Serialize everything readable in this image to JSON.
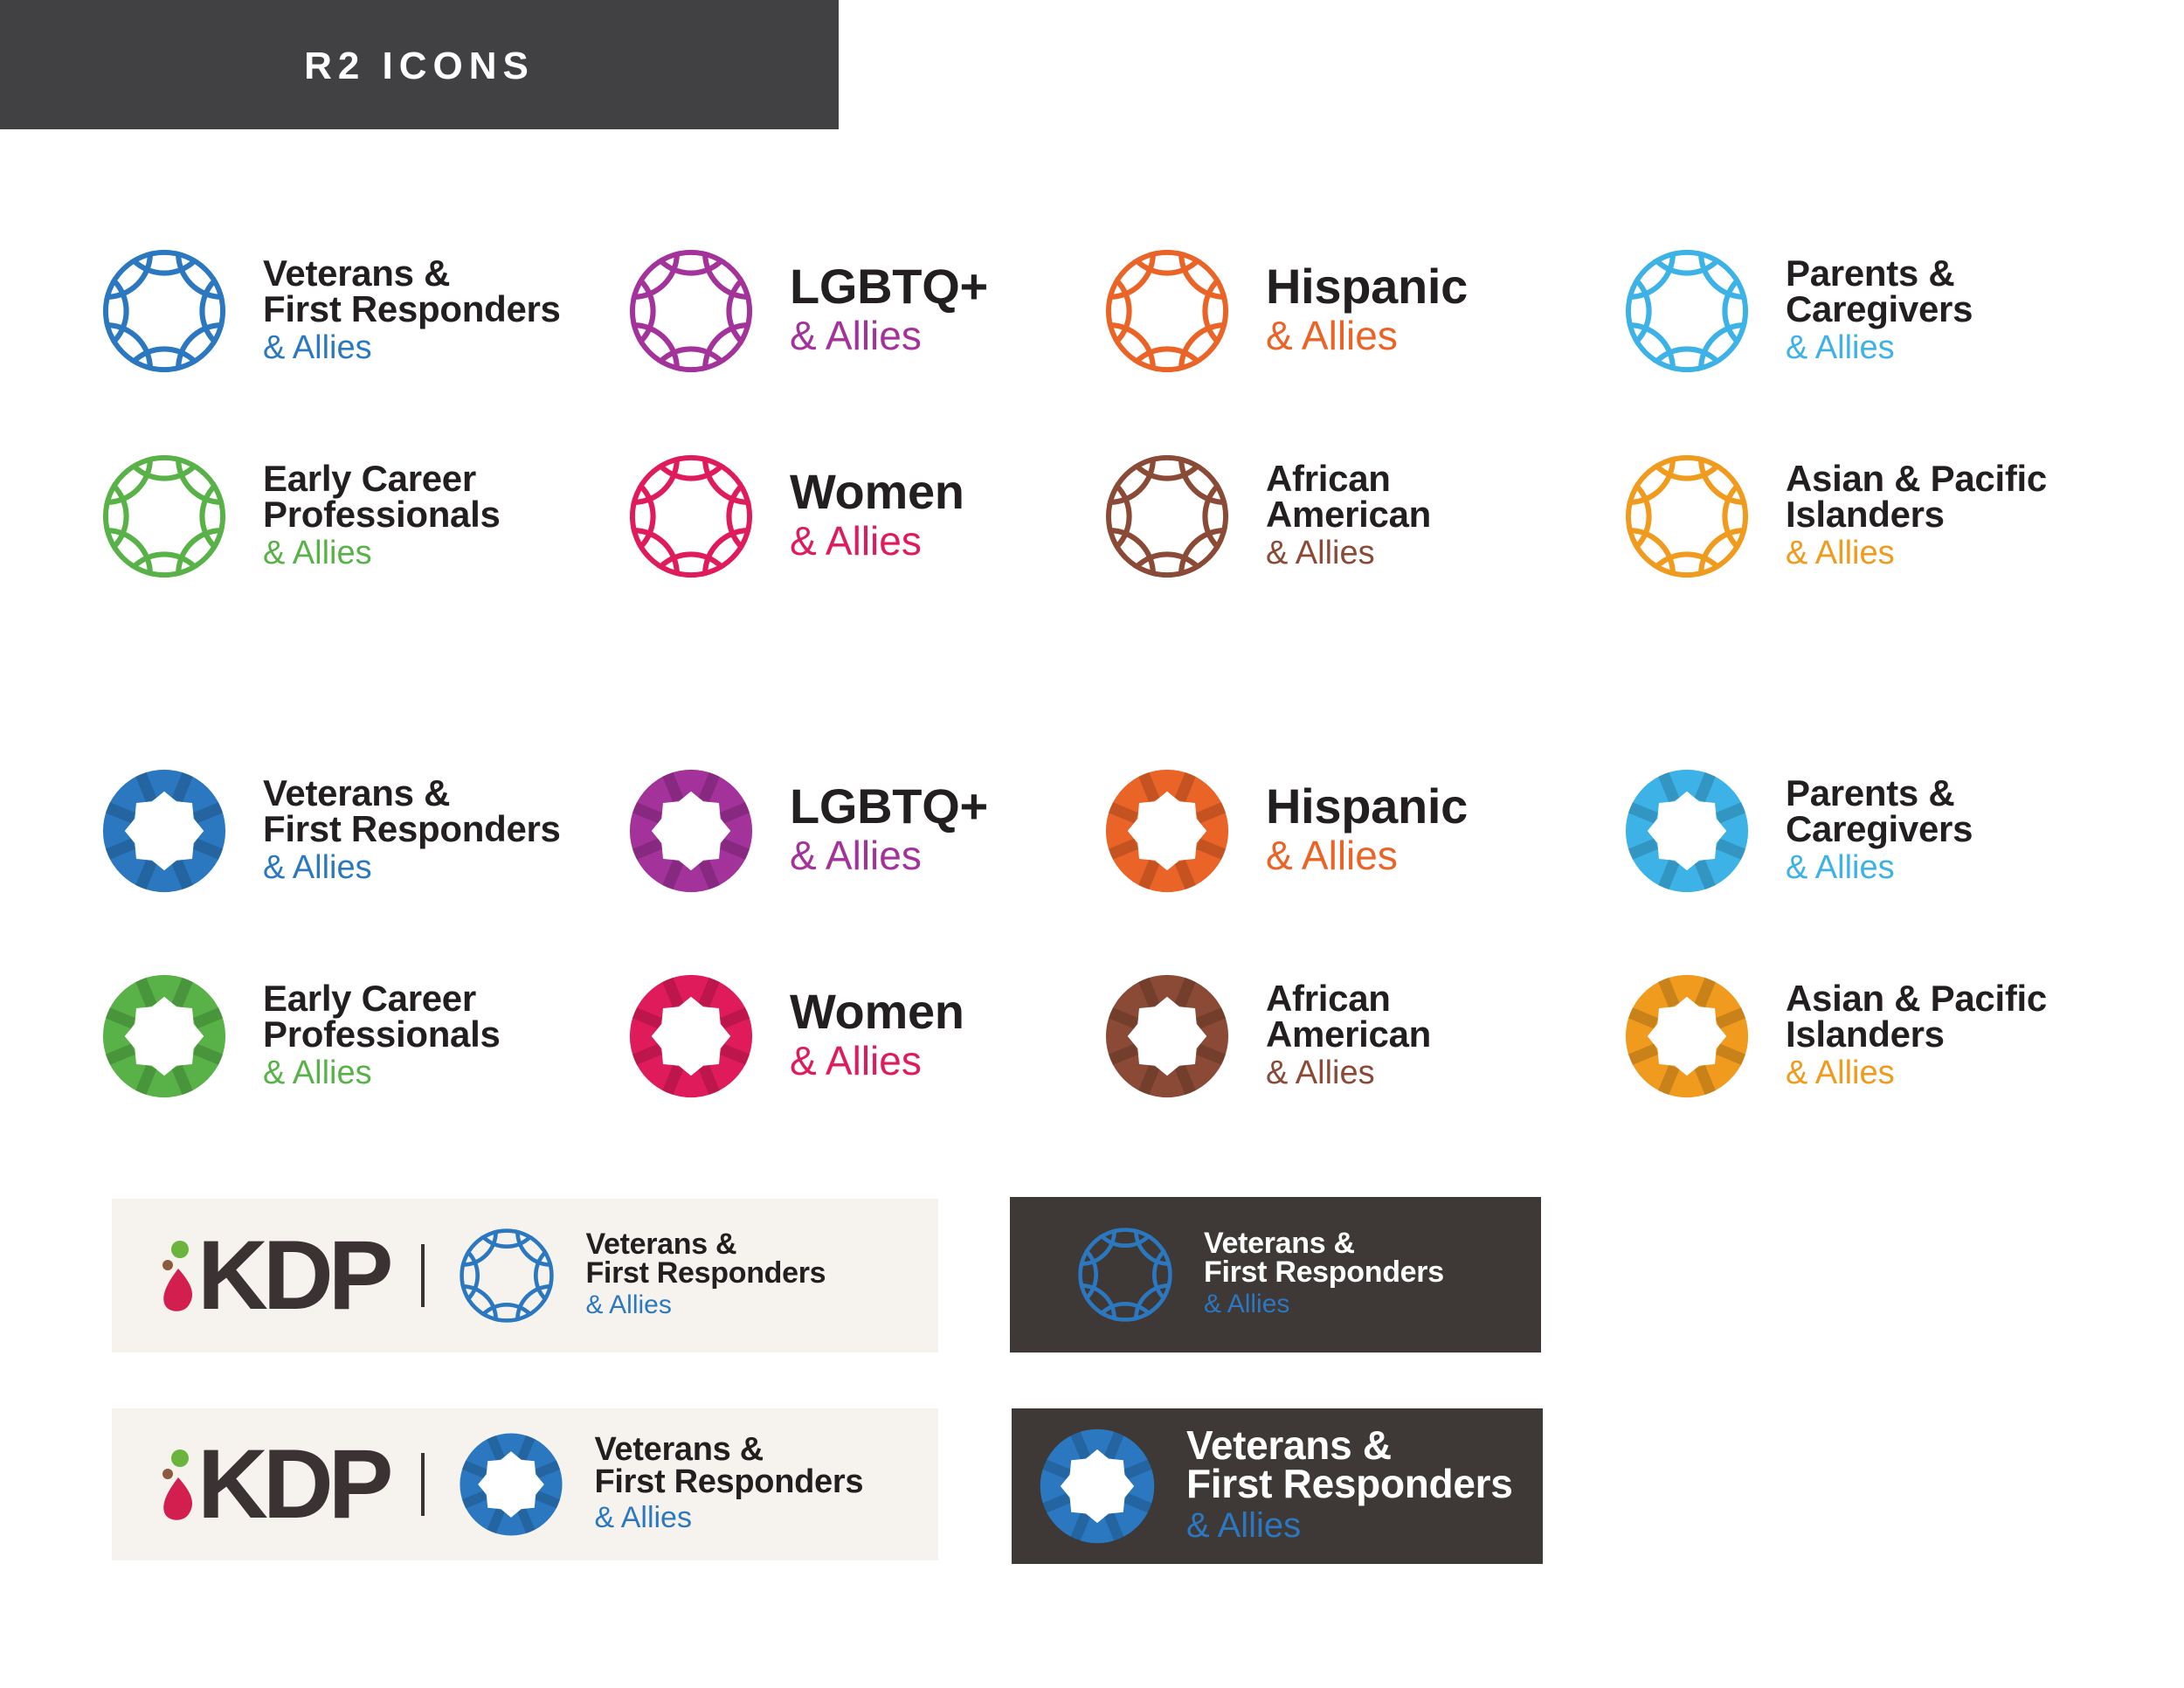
{
  "header": {
    "title": "R2 ICONS"
  },
  "logos": {
    "outline": [
      {
        "name_lines": [
          "Veterans &",
          "First Responders"
        ],
        "allies": "& Allies",
        "color": "#2b78c0"
      },
      {
        "name_lines": [
          "LGBTQ+"
        ],
        "allies": "& Allies",
        "color": "#a3329a"
      },
      {
        "name_lines": [
          "Hispanic"
        ],
        "allies": "& Allies",
        "color": "#ea6428"
      },
      {
        "name_lines": [
          "Parents &",
          "Caregivers"
        ],
        "allies": "& Allies",
        "color": "#3db2e6"
      },
      {
        "name_lines": [
          "Early Career",
          "Professionals"
        ],
        "allies": "& Allies",
        "color": "#58b247"
      },
      {
        "name_lines": [
          "Women"
        ],
        "allies": "& Allies",
        "color": "#e01b5b"
      },
      {
        "name_lines": [
          "African",
          "American"
        ],
        "allies": "& Allies",
        "color": "#8b4a35"
      },
      {
        "name_lines": [
          "Asian & Pacific",
          "Islanders"
        ],
        "allies": "& Allies",
        "color": "#f09a1e"
      }
    ],
    "solid": [
      {
        "name_lines": [
          "Veterans &",
          "First Responders"
        ],
        "allies": "& Allies",
        "color": "#2b78c0"
      },
      {
        "name_lines": [
          "LGBTQ+"
        ],
        "allies": "& Allies",
        "color": "#a3329a"
      },
      {
        "name_lines": [
          "Hispanic"
        ],
        "allies": "& Allies",
        "color": "#ea6428"
      },
      {
        "name_lines": [
          "Parents &",
          "Caregivers"
        ],
        "allies": "& Allies",
        "color": "#3db2e6"
      },
      {
        "name_lines": [
          "Early Career",
          "Professionals"
        ],
        "allies": "& Allies",
        "color": "#58b247"
      },
      {
        "name_lines": [
          "Women"
        ],
        "allies": "& Allies",
        "color": "#e01b5b"
      },
      {
        "name_lines": [
          "African",
          "American"
        ],
        "allies": "& Allies",
        "color": "#8b4a35"
      },
      {
        "name_lines": [
          "Asian & Pacific",
          "Islanders"
        ],
        "allies": "& Allies",
        "color": "#f09a1e"
      }
    ]
  },
  "panels": [
    {
      "kdp_text": "KDP",
      "name_lines": [
        "Veterans &",
        "First Responders"
      ],
      "allies": "& Allies",
      "color": "#2b78c0",
      "style": "outline",
      "theme": "light"
    },
    {
      "name_lines": [
        "Veterans &",
        "First Responders"
      ],
      "allies": "& Allies",
      "color": "#2b78c0",
      "style": "outline",
      "theme": "dark"
    },
    {
      "kdp_text": "KDP",
      "name_lines": [
        "Veterans &",
        "First Responders"
      ],
      "allies": "& Allies",
      "color": "#2b78c0",
      "style": "solid",
      "theme": "light"
    },
    {
      "name_lines": [
        "Veterans &",
        "First Responders"
      ],
      "allies": "& Allies",
      "color": "#2b78c0",
      "style": "solid",
      "theme": "dark"
    }
  ],
  "brand_colors": {
    "header_bg": "#414042",
    "text_dark": "#231f20",
    "panel_light": "#f6f3ee",
    "panel_dark": "#3e3837",
    "kdp_dark": "#3a3233",
    "kdp_red": "#d21f4f",
    "kdp_green": "#6bb43e",
    "kdp_brown": "#8c5a3c"
  },
  "icons": {
    "outline_mark": "globe-lattice-icon",
    "solid_mark": "ring-star-icon",
    "kdp_mark": "kdp-logo-icon"
  }
}
